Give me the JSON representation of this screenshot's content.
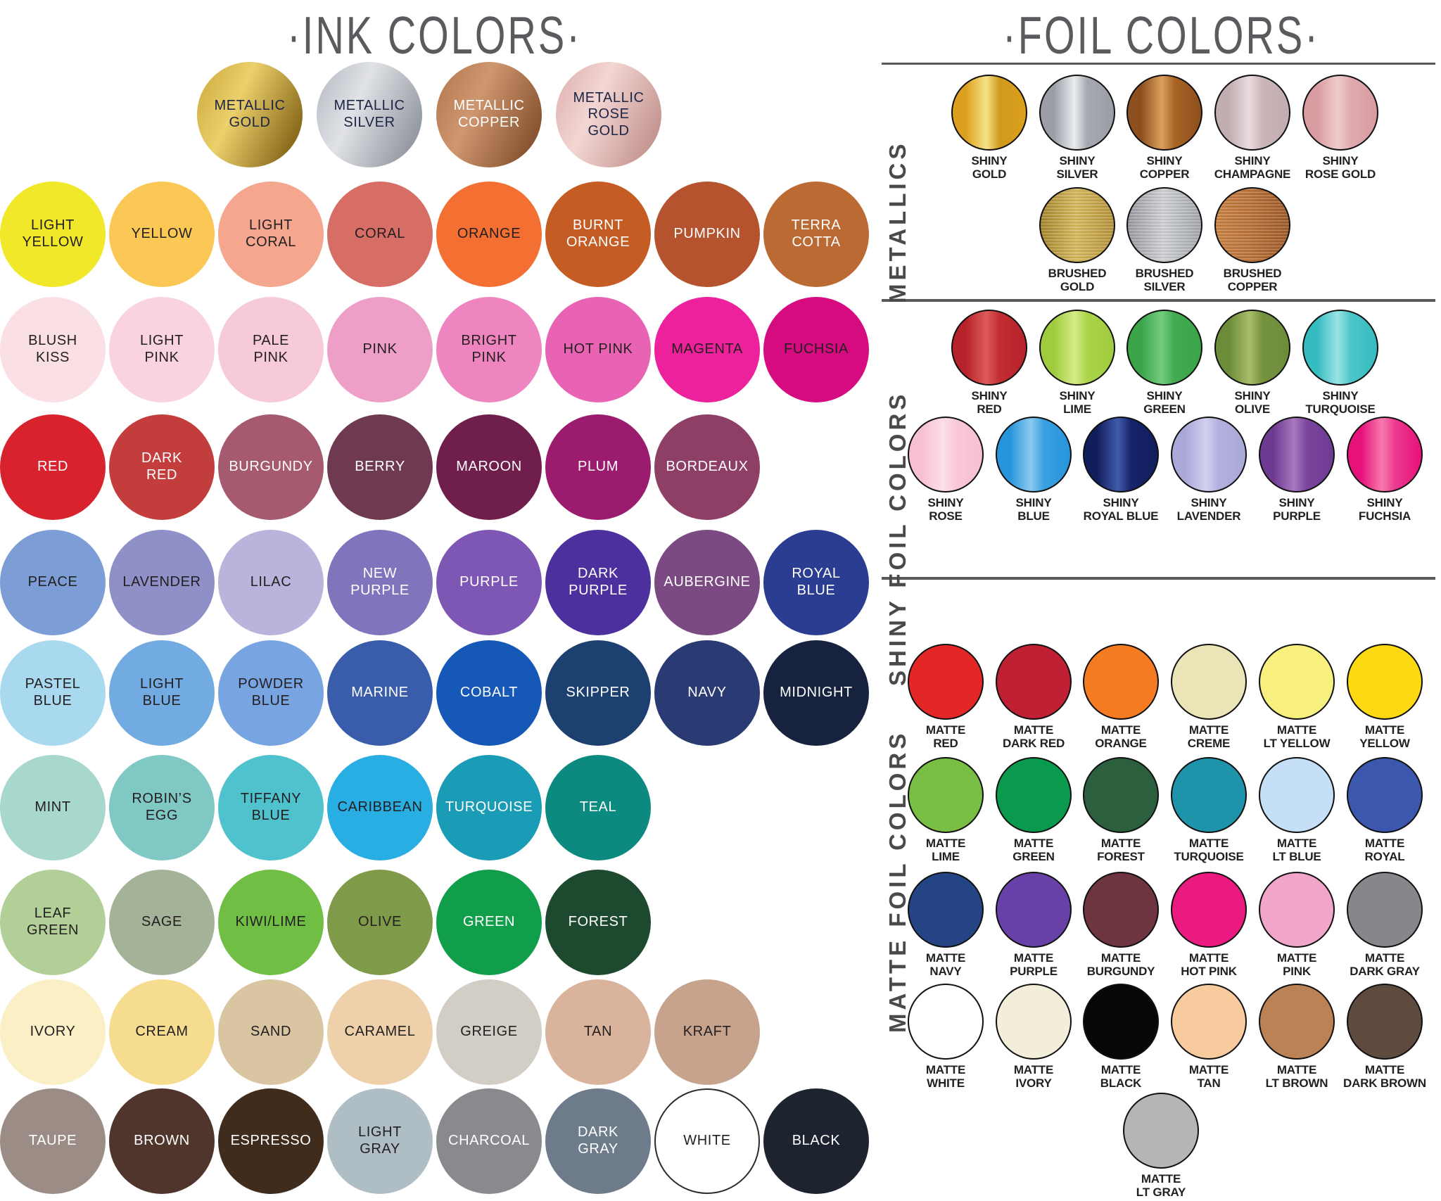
{
  "ink": {
    "title": "·INK COLORS·",
    "metallic_row": [
      {
        "label": "METALLIC\nGOLD",
        "finish": "metallic",
        "colors": [
          "#ecd06b",
          "#c9a73b",
          "#8c6d1e"
        ],
        "fg": "#1c2444"
      },
      {
        "label": "METALLIC\nSILVER",
        "finish": "metallic",
        "colors": [
          "#e0e2e6",
          "#b3b7bf",
          "#969ba3"
        ],
        "fg": "#1c2444"
      },
      {
        "label": "METALLIC\nCOPPER",
        "finish": "metallic",
        "colors": [
          "#cf9770",
          "#b0764c",
          "#8a5532"
        ],
        "fg": "#ffffff"
      },
      {
        "label": "METALLIC\nROSE\nGOLD",
        "finish": "metallic",
        "colors": [
          "#f3d6d3",
          "#ddadab",
          "#c69793"
        ],
        "fg": "#1c2444"
      }
    ],
    "rows": [
      [
        {
          "label": "LIGHT\nYELLOW",
          "colors": [
            "#f0e829"
          ],
          "fg": "#231f20"
        },
        {
          "label": "YELLOW",
          "colors": [
            "#fbc855"
          ],
          "fg": "#231f20"
        },
        {
          "label": "LIGHT\nCORAL",
          "colors": [
            "#f5a68f"
          ],
          "fg": "#231f20"
        },
        {
          "label": "CORAL",
          "colors": [
            "#d66e66"
          ],
          "fg": "#231f20"
        },
        {
          "label": "ORANGE",
          "colors": [
            "#f37032"
          ],
          "fg": "#231f20"
        },
        {
          "label": "BURNT\nORANGE",
          "colors": [
            "#c45c24"
          ],
          "fg": "#ffffff"
        },
        {
          "label": "PUMPKIN",
          "colors": [
            "#b5532e"
          ],
          "fg": "#ffffff"
        },
        {
          "label": "TERRA\nCOTTA",
          "colors": [
            "#bc6a33"
          ],
          "fg": "#ffffff"
        }
      ],
      [
        {
          "label": "BLUSH\nKISS",
          "colors": [
            "#fadfe5"
          ],
          "fg": "#231f20"
        },
        {
          "label": "LIGHT\nPINK",
          "colors": [
            "#f9d4de"
          ],
          "fg": "#231f20"
        },
        {
          "label": "PALE\nPINK",
          "colors": [
            "#f7cad7"
          ],
          "fg": "#231f20"
        },
        {
          "label": "PINK",
          "colors": [
            "#ee9fc8"
          ],
          "fg": "#231f20"
        },
        {
          "label": "BRIGHT\nPINK",
          "colors": [
            "#ee85c0"
          ],
          "fg": "#231f20"
        },
        {
          "label": "HOT PINK",
          "colors": [
            "#e963b4"
          ],
          "fg": "#231f20"
        },
        {
          "label": "MAGENTA",
          "colors": [
            "#ec219b"
          ],
          "fg": "#231f20"
        },
        {
          "label": "FUCHSIA",
          "colors": [
            "#d60b80"
          ],
          "fg": "#231f20"
        }
      ],
      [
        {
          "label": "RED",
          "colors": [
            "#d8232f"
          ],
          "fg": "#ffffff"
        },
        {
          "label": "DARK\nRED",
          "colors": [
            "#c33d3d"
          ],
          "fg": "#ffffff"
        },
        {
          "label": "BURGUNDY",
          "colors": [
            "#a55a6f"
          ],
          "fg": "#ffffff"
        },
        {
          "label": "BERRY",
          "colors": [
            "#6f3a51"
          ],
          "fg": "#ffffff"
        },
        {
          "label": "MAROON",
          "colors": [
            "#701f4d"
          ],
          "fg": "#ffffff"
        },
        {
          "label": "PLUM",
          "colors": [
            "#9b1c6e"
          ],
          "fg": "#ffffff"
        },
        {
          "label": "BORDEAUX",
          "colors": [
            "#8d3f66"
          ],
          "fg": "#ffffff"
        }
      ],
      [
        {
          "label": "PEACE",
          "colors": [
            "#7d9dd7"
          ],
          "fg": "#231f20"
        },
        {
          "label": "LAVENDER",
          "colors": [
            "#8f90c8"
          ],
          "fg": "#231f20"
        },
        {
          "label": "LILAC",
          "colors": [
            "#bab3db"
          ],
          "fg": "#231f20"
        },
        {
          "label": "NEW\nPURPLE",
          "colors": [
            "#8274bc"
          ],
          "fg": "#ffffff"
        },
        {
          "label": "PURPLE",
          "colors": [
            "#7e57b4"
          ],
          "fg": "#ffffff"
        },
        {
          "label": "DARK\nPURPLE",
          "colors": [
            "#4c319e"
          ],
          "fg": "#ffffff"
        },
        {
          "label": "AUBERGINE",
          "colors": [
            "#7c4a82"
          ],
          "fg": "#ffffff"
        },
        {
          "label": "ROYAL\nBLUE",
          "colors": [
            "#2b3d91"
          ],
          "fg": "#ffffff"
        }
      ],
      [
        {
          "label": "PASTEL\nBLUE",
          "colors": [
            "#a9d9ef"
          ],
          "fg": "#231f20"
        },
        {
          "label": "LIGHT\nBLUE",
          "colors": [
            "#72abe2"
          ],
          "fg": "#231f20"
        },
        {
          "label": "POWDER\nBLUE",
          "colors": [
            "#78a5e2"
          ],
          "fg": "#231f20"
        },
        {
          "label": "MARINE",
          "colors": [
            "#3a5dab"
          ],
          "fg": "#ffffff"
        },
        {
          "label": "COBALT",
          "colors": [
            "#1558b7"
          ],
          "fg": "#ffffff"
        },
        {
          "label": "SKIPPER",
          "colors": [
            "#1c406f"
          ],
          "fg": "#ffffff"
        },
        {
          "label": "NAVY",
          "colors": [
            "#2a3a72"
          ],
          "fg": "#ffffff"
        },
        {
          "label": "MIDNIGHT",
          "colors": [
            "#16223e"
          ],
          "fg": "#ffffff"
        }
      ],
      [
        {
          "label": "MINT",
          "colors": [
            "#a8d7cd"
          ],
          "fg": "#231f20"
        },
        {
          "label": "ROBIN’S\nEGG",
          "colors": [
            "#7fc8c3"
          ],
          "fg": "#231f20"
        },
        {
          "label": "TIFFANY\nBLUE",
          "colors": [
            "#4fc2ce"
          ],
          "fg": "#231f20"
        },
        {
          "label": "CARIBBEAN",
          "colors": [
            "#28aee3"
          ],
          "fg": "#231f20"
        },
        {
          "label": "TURQUOISE",
          "colors": [
            "#1b9cb6"
          ],
          "fg": "#ffffff"
        },
        {
          "label": "TEAL",
          "colors": [
            "#0d8a7f"
          ],
          "fg": "#ffffff"
        }
      ],
      [
        {
          "label": "LEAF\nGREEN",
          "colors": [
            "#b2cf98"
          ],
          "fg": "#231f20"
        },
        {
          "label": "SAGE",
          "colors": [
            "#a4b297"
          ],
          "fg": "#231f20"
        },
        {
          "label": "KIWI/LIME",
          "colors": [
            "#70bf44"
          ],
          "fg": "#231f20"
        },
        {
          "label": "OLIVE",
          "colors": [
            "#7f9b49"
          ],
          "fg": "#231f20"
        },
        {
          "label": "GREEN",
          "colors": [
            "#119e4b"
          ],
          "fg": "#ffffff"
        },
        {
          "label": "FOREST",
          "colors": [
            "#1d4a2e"
          ],
          "fg": "#ffffff"
        }
      ],
      [
        {
          "label": "IVORY",
          "colors": [
            "#faefc5"
          ],
          "fg": "#231f20"
        },
        {
          "label": "CREAM",
          "colors": [
            "#f6dc8e"
          ],
          "fg": "#231f20"
        },
        {
          "label": "SAND",
          "colors": [
            "#d9c5a1"
          ],
          "fg": "#231f20"
        },
        {
          "label": "CARAMEL",
          "colors": [
            "#eed1ab"
          ],
          "fg": "#231f20"
        },
        {
          "label": "GREIGE",
          "colors": [
            "#d2cec5"
          ],
          "fg": "#231f20"
        },
        {
          "label": "TAN",
          "colors": [
            "#dab39c"
          ],
          "fg": "#231f20"
        },
        {
          "label": "KRAFT",
          "colors": [
            "#c7a28d"
          ],
          "fg": "#231f20"
        }
      ],
      [
        {
          "label": "TAUPE",
          "colors": [
            "#9b8c85"
          ],
          "fg": "#ffffff"
        },
        {
          "label": "BROWN",
          "colors": [
            "#4f352b"
          ],
          "fg": "#ffffff"
        },
        {
          "label": "ESPRESSO",
          "colors": [
            "#402c1d"
          ],
          "fg": "#ffffff"
        },
        {
          "label": "LIGHT\nGRAY",
          "colors": [
            "#afbdc5"
          ],
          "fg": "#231f20"
        },
        {
          "label": "CHARCOAL",
          "colors": [
            "#898a8e"
          ],
          "fg": "#ffffff"
        },
        {
          "label": "DARK\nGRAY",
          "colors": [
            "#6e7b8a"
          ],
          "fg": "#ffffff"
        },
        {
          "label": "WHITE",
          "colors": [
            "#ffffff"
          ],
          "fg": "#231f20"
        },
        {
          "label": "BLACK",
          "colors": [
            "#1d2430"
          ],
          "fg": "#ffffff"
        }
      ]
    ]
  },
  "foil": {
    "title": "·FOIL COLORS·",
    "sections": [
      {
        "name": "METALLICS",
        "rows": [
          {
            "cols": "c5",
            "items": [
              {
                "label": "SHINY\nGOLD",
                "finish": "shiny",
                "colors": [
                  "#dca01f",
                  "#f6e388",
                  "#cf9a1d"
                ]
              },
              {
                "label": "SHINY\nSILVER",
                "finish": "shiny",
                "colors": [
                  "#9b9ea6",
                  "#e9ebee",
                  "#a4a8af"
                ]
              },
              {
                "label": "SHINY\nCOPPER",
                "finish": "shiny",
                "colors": [
                  "#8d4f1e",
                  "#dba05e",
                  "#a96426"
                ]
              },
              {
                "label": "SHINY\nCHAMPAGNE",
                "finish": "shiny",
                "colors": [
                  "#c2adb1",
                  "#eadcdf",
                  "#c9b4b8"
                ]
              },
              {
                "label": "SHINY\nROSE GOLD",
                "finish": "shiny",
                "colors": [
                  "#d89ba0",
                  "#f0cbcd",
                  "#dfabae"
                ]
              }
            ]
          },
          {
            "cols": "c3",
            "items": [
              {
                "label": "BRUSHED\nGOLD",
                "finish": "brushed",
                "colors": [
                  "#a5842c",
                  "#d7ba5e",
                  "#b5923a"
                ]
              },
              {
                "label": "BRUSHED\nSILVER",
                "finish": "brushed",
                "colors": [
                  "#97999f",
                  "#cfd1d4",
                  "#a3a6ab"
                ]
              },
              {
                "label": "BRUSHED\nCOPPER",
                "finish": "brushed",
                "colors": [
                  "#c9823f",
                  "#b9713a",
                  "#9e5a27"
                ]
              }
            ]
          }
        ]
      },
      {
        "name": "SHINY FOIL COLORS",
        "rows": [
          {
            "cols": "c5",
            "items": [
              {
                "label": "SHINY\nRED",
                "finish": "shiny",
                "colors": [
                  "#b7232b",
                  "#dd5b5b",
                  "#c22d33"
                ]
              },
              {
                "label": "SHINY\nLIME",
                "finish": "shiny",
                "colors": [
                  "#9fcb3e",
                  "#d6eb85",
                  "#abd44a"
                ]
              },
              {
                "label": "SHINY\nGREEN",
                "finish": "shiny",
                "colors": [
                  "#3aa449",
                  "#74cb7f",
                  "#42aa50"
                ]
              },
              {
                "label": "SHINY\nOLIVE",
                "finish": "shiny",
                "colors": [
                  "#6d8c3a",
                  "#a8bd68",
                  "#75923f"
                ]
              },
              {
                "label": "SHINY\nTURQUOISE",
                "finish": "shiny",
                "colors": [
                  "#35bcc0",
                  "#9ae3e4",
                  "#4cc6c9"
                ]
              }
            ]
          },
          {
            "cols": "c6",
            "items": [
              {
                "label": "SHINY\nROSE",
                "finish": "shiny",
                "colors": [
                  "#f7c0d2",
                  "#fcdfe8",
                  "#f8c8d7"
                ]
              },
              {
                "label": "SHINY\nBLUE",
                "finish": "shiny",
                "colors": [
                  "#2795dc",
                  "#8ccaf0",
                  "#3a9fe0"
                ]
              },
              {
                "label": "SHINY\nROYAL BLUE",
                "finish": "shiny",
                "colors": [
                  "#111e5c",
                  "#3f5cab",
                  "#16246a"
                ]
              },
              {
                "label": "SHINY\nLAVENDER",
                "finish": "shiny",
                "colors": [
                  "#a9a8d8",
                  "#d2d0ef",
                  "#b2b0dc"
                ]
              },
              {
                "label": "SHINY\nPURPLE",
                "finish": "shiny",
                "colors": [
                  "#6e3a92",
                  "#a778bf",
                  "#7b459c"
                ]
              },
              {
                "label": "SHINY\nFUCHSIA",
                "finish": "shiny",
                "colors": [
                  "#e7117a",
                  "#f67bae",
                  "#ec3a8f"
                ]
              }
            ]
          }
        ]
      },
      {
        "name": "MATTE FOIL COLORS",
        "rows": [
          {
            "cols": "c6",
            "items": [
              {
                "label": "MATTE\nRED",
                "colors": [
                  "#e32726"
                ]
              },
              {
                "label": "MATTE\nDARK RED",
                "colors": [
                  "#c02033"
                ]
              },
              {
                "label": "MATTE\nORANGE",
                "colors": [
                  "#f47b21"
                ]
              },
              {
                "label": "MATTE\nCREME",
                "colors": [
                  "#ebe4b6"
                ]
              },
              {
                "label": "MATTE\nLT YELLOW",
                "colors": [
                  "#f8f07e"
                ]
              },
              {
                "label": "MATTE\nYELLOW",
                "colors": [
                  "#fdd911"
                ]
              }
            ]
          },
          {
            "cols": "c6",
            "items": [
              {
                "label": "MATTE\nLIME",
                "colors": [
                  "#78bd44"
                ]
              },
              {
                "label": "MATTE\nGREEN",
                "colors": [
                  "#0a9a4e"
                ]
              },
              {
                "label": "MATTE\nFOREST",
                "colors": [
                  "#2b5f3e"
                ]
              },
              {
                "label": "MATTE\nTURQUOISE",
                "colors": [
                  "#1f93a9"
                ]
              },
              {
                "label": "MATTE\nLT BLUE",
                "colors": [
                  "#c5e0f6"
                ]
              },
              {
                "label": "MATTE\nROYAL",
                "colors": [
                  "#3c57ae"
                ]
              }
            ]
          },
          {
            "cols": "c6",
            "items": [
              {
                "label": "MATTE\nNAVY",
                "colors": [
                  "#254486"
                ]
              },
              {
                "label": "MATTE\nPURPLE",
                "colors": [
                  "#6740a8"
                ]
              },
              {
                "label": "MATTE\nBURGUNDY",
                "colors": [
                  "#6e3440"
                ]
              },
              {
                "label": "MATTE\nHOT PINK",
                "colors": [
                  "#eb1a80"
                ]
              },
              {
                "label": "MATTE\nPINK",
                "colors": [
                  "#f0a5c9"
                ]
              },
              {
                "label": "MATTE\nDARK GRAY",
                "colors": [
                  "#85878a"
                ]
              }
            ]
          },
          {
            "cols": "c6",
            "items": [
              {
                "label": "MATTE\nWHITE",
                "colors": [
                  "#ffffff"
                ]
              },
              {
                "label": "MATTE\nIVORY",
                "colors": [
                  "#f3eed9"
                ]
              },
              {
                "label": "MATTE\nBLACK",
                "colors": [
                  "#070707"
                ]
              },
              {
                "label": "MATTE\nTAN",
                "colors": [
                  "#f7cb9e"
                ]
              },
              {
                "label": "MATTE\nLT BROWN",
                "colors": [
                  "#bb8355"
                ]
              },
              {
                "label": "MATTE\nDARK BROWN",
                "colors": [
                  "#5e4b3d"
                ]
              }
            ]
          },
          {
            "cols": "c1",
            "items": [
              {
                "label": "MATTE\nLT GRAY",
                "colors": [
                  "#b5b5b7"
                ]
              }
            ]
          }
        ]
      }
    ]
  },
  "colors": {
    "divider": "#58595b",
    "title": "#5a5b5e",
    "foil_label": "#231f20"
  }
}
